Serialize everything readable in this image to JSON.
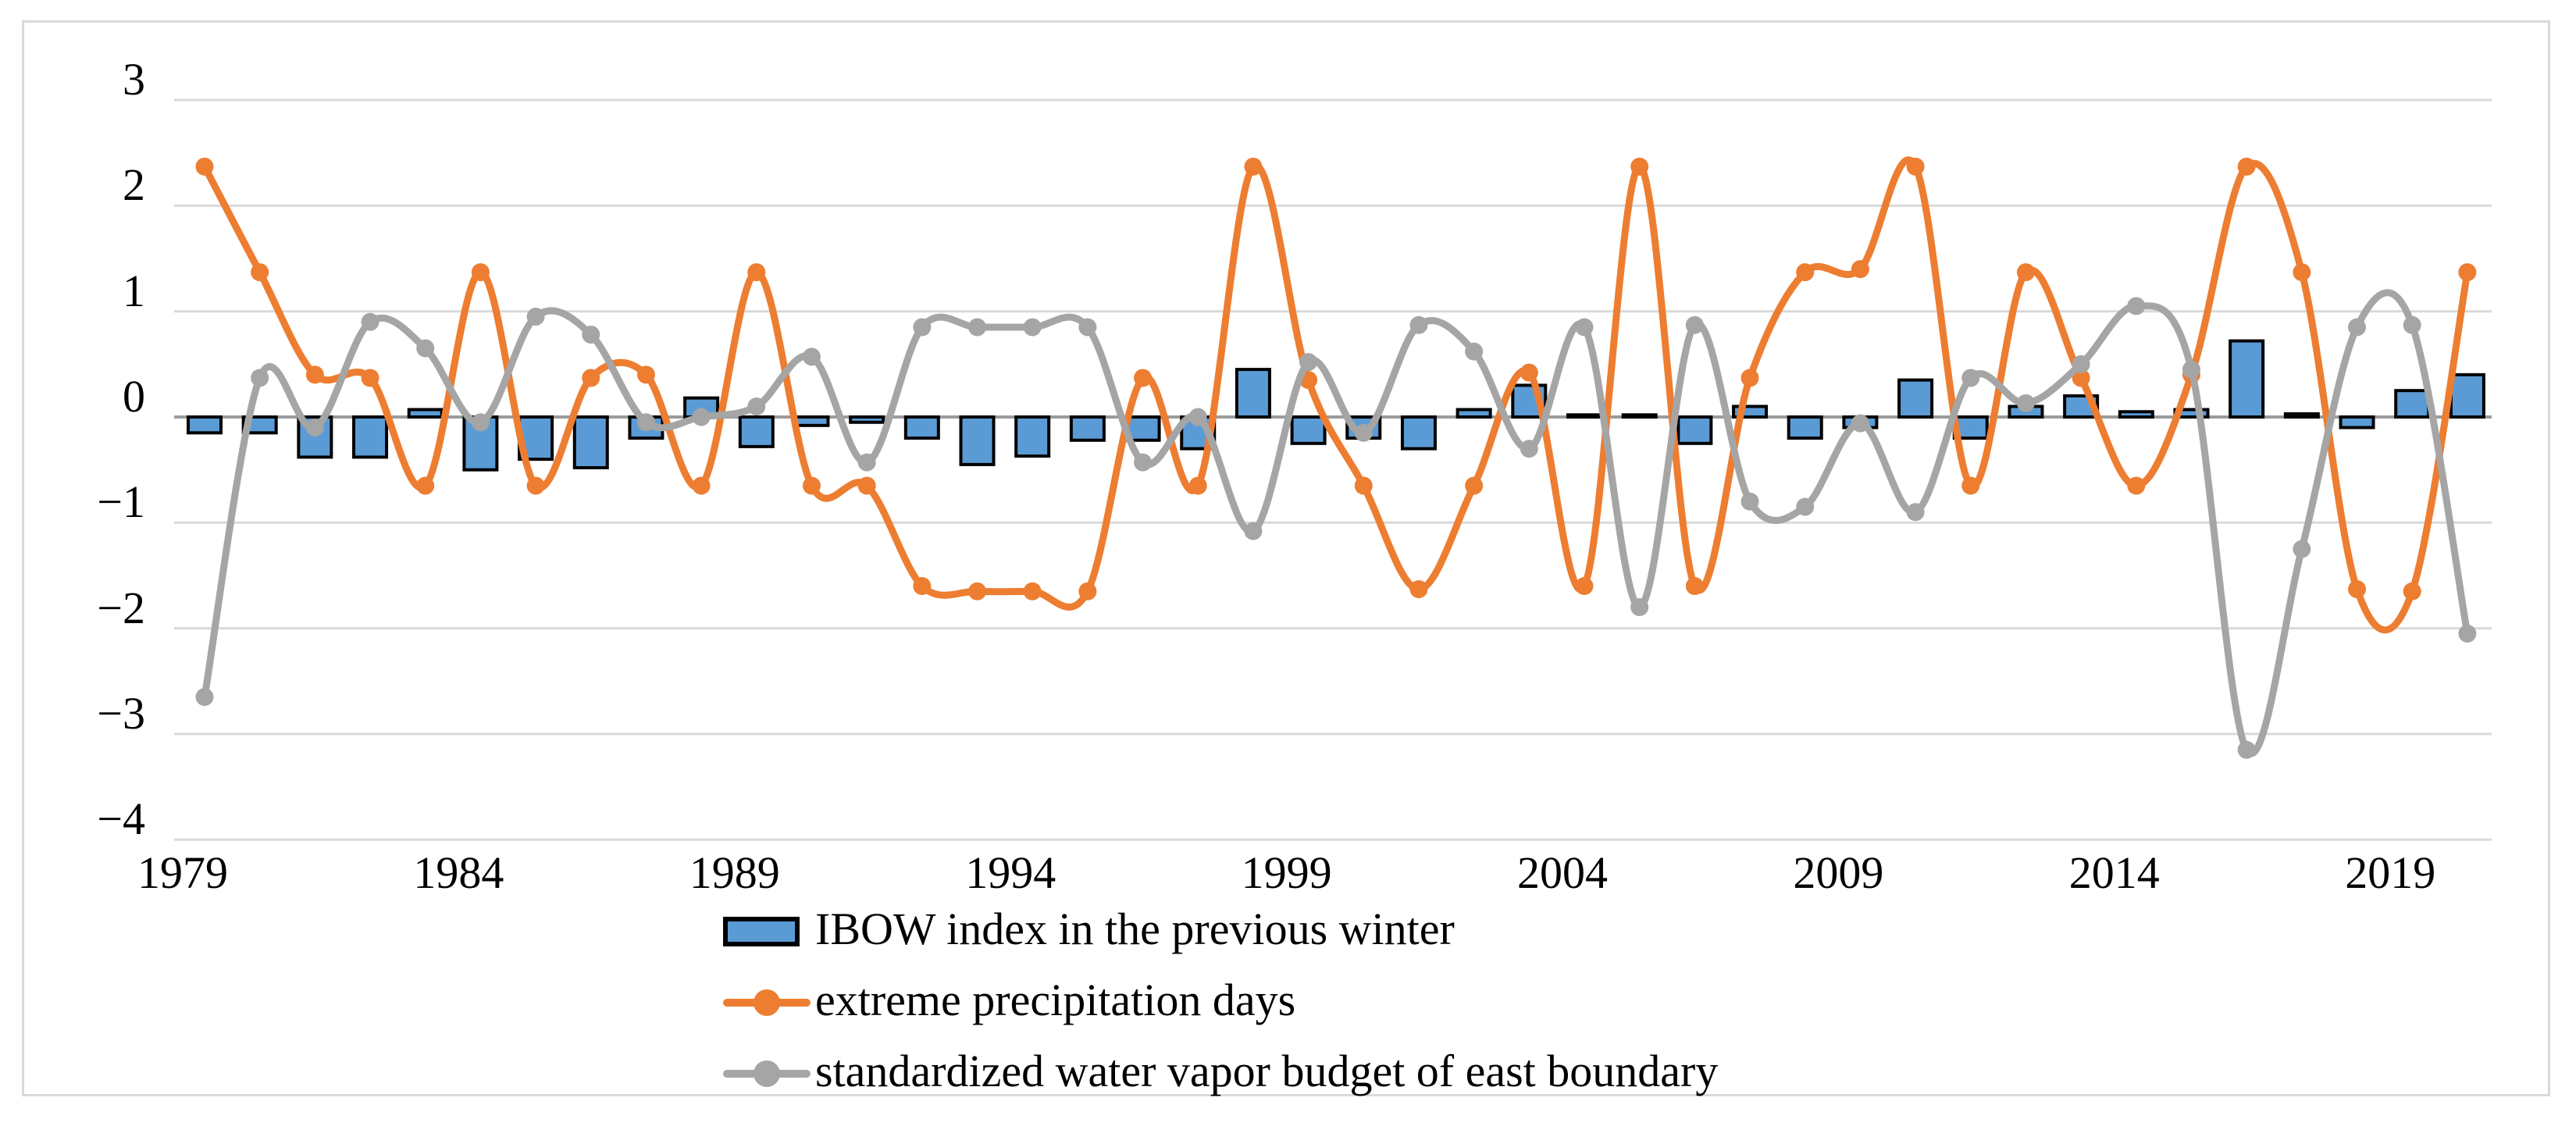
{
  "figure": {
    "background": "#FFFFFF",
    "border_color": "#D9D9D9"
  },
  "colors": {
    "bar_fill": "#5B9BD5",
    "bar_border": "#000000",
    "orange_line": "#ED7D31",
    "gray_line": "#A5A5A5",
    "gridline": "#D9D9D9",
    "zero_axis_line": "#9B9B9B",
    "text": "#000000"
  },
  "axes": {
    "y_tick_labels": [
      "3",
      "2",
      "1",
      "0",
      "−1",
      "−2",
      "−3",
      "−4"
    ],
    "y_tick_values": [
      3,
      2,
      1,
      0,
      -1,
      -2,
      -3,
      -4
    ],
    "x_tick_labels": [
      "1979",
      "1984",
      "1989",
      "1994",
      "1999",
      "2004",
      "2009",
      "2014",
      "2019"
    ],
    "x_tick_values": [
      1979,
      1984,
      1989,
      1994,
      1999,
      2004,
      2009,
      2014,
      2019
    ]
  },
  "legend": {
    "items": [
      {
        "label": "IBOW index in the previous winter",
        "marker": "bar-swatch",
        "color": "#5B9BD5"
      },
      {
        "label": "extreme precipitation days",
        "marker": "line-with-dot",
        "color": "#ED7D31"
      },
      {
        "label": "standardized water vapor budget of east boundary",
        "marker": "line-with-dot",
        "color": "#A5A5A5"
      }
    ]
  },
  "chart_data": {
    "type": "combo",
    "x": [
      1979,
      1980,
      1981,
      1982,
      1983,
      1984,
      1985,
      1986,
      1987,
      1988,
      1989,
      1990,
      1991,
      1992,
      1993,
      1994,
      1995,
      1996,
      1997,
      1998,
      1999,
      2000,
      2001,
      2002,
      2003,
      2004,
      2005,
      2006,
      2007,
      2008,
      2009,
      2010,
      2011,
      2012,
      2013,
      2014,
      2015,
      2016,
      2017,
      2018,
      2019,
      2020
    ],
    "series": [
      {
        "name": "IBOW index in the previous winter",
        "type": "bar",
        "color": "#5B9BD5",
        "border_color": "#000000",
        "values": [
          -0.15,
          -0.15,
          -0.38,
          -0.38,
          0.07,
          -0.5,
          -0.4,
          -0.48,
          -0.2,
          0.18,
          -0.28,
          -0.08,
          -0.05,
          -0.2,
          -0.45,
          -0.37,
          -0.22,
          -0.22,
          -0.3,
          0.45,
          -0.25,
          -0.2,
          -0.3,
          0.07,
          0.3,
          0.02,
          0.02,
          -0.25,
          0.1,
          -0.2,
          -0.1,
          0.35,
          -0.2,
          0.1,
          0.2,
          0.05,
          0.07,
          0.72,
          0.03,
          -0.1,
          0.25,
          0.4
        ]
      },
      {
        "name": "extreme precipitation days",
        "type": "line",
        "color": "#ED7D31",
        "smooth": true,
        "values": [
          2.37,
          1.37,
          0.4,
          0.37,
          -0.65,
          1.37,
          -0.65,
          0.37,
          0.4,
          -0.65,
          1.37,
          -0.65,
          -0.65,
          -1.6,
          -1.65,
          -1.65,
          -1.65,
          0.37,
          -0.65,
          2.37,
          0.35,
          -0.65,
          -1.63,
          -0.65,
          0.42,
          -1.6,
          2.37,
          -1.6,
          0.37,
          1.37,
          1.4,
          2.37,
          -0.65,
          1.37,
          0.37,
          -0.65,
          0.4,
          2.37,
          1.37,
          -1.63,
          -1.65,
          1.37
        ]
      },
      {
        "name": "standardized water vapor budget of east boundary",
        "type": "line",
        "color": "#A5A5A5",
        "smooth": true,
        "values": [
          -2.65,
          0.37,
          -0.1,
          0.9,
          0.65,
          -0.05,
          0.95,
          0.78,
          -0.05,
          0.0,
          0.1,
          0.57,
          -0.43,
          0.85,
          0.85,
          0.85,
          0.85,
          -0.43,
          0.0,
          -1.08,
          0.52,
          -0.15,
          0.87,
          0.62,
          -0.3,
          0.85,
          -1.8,
          0.87,
          -0.8,
          -0.85,
          -0.06,
          -0.9,
          0.37,
          0.13,
          0.5,
          1.05,
          0.45,
          -3.15,
          -1.25,
          0.85,
          0.87,
          -2.05
        ]
      }
    ],
    "title": "",
    "xlabel": "",
    "ylabel": "",
    "ylim": [
      -4,
      3
    ],
    "grid": true,
    "legend_position": "bottom-center"
  }
}
